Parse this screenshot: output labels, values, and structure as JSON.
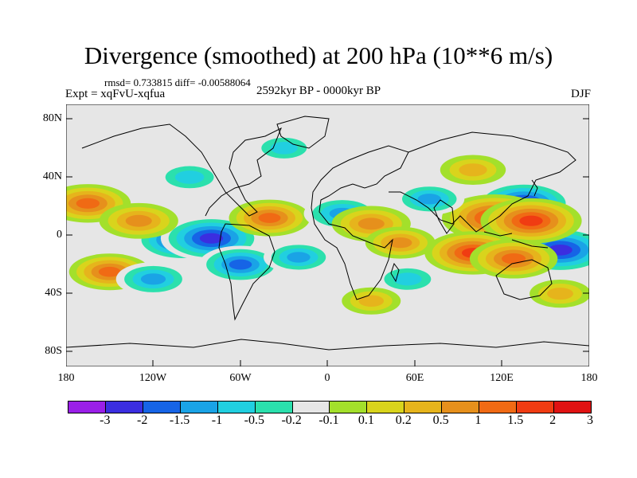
{
  "title": "Divergence (smoothed) at 200 hPa (10**6 m/s)",
  "stats": "rmsd= 0.733815 diff= -0.00588064",
  "experiment": "Expt = xqFvU-xqfua",
  "period": "2592kyr BP - 0000kyr BP",
  "season": "DJF",
  "lat_labels": [
    "80N",
    "40N",
    "0",
    "40S",
    "80S"
  ],
  "lon_labels": [
    "180",
    "120W",
    "60W",
    "0",
    "60E",
    "120E",
    "180"
  ],
  "colorbar": {
    "colors": [
      "#9a1fe8",
      "#3b2ee0",
      "#1664e6",
      "#1aa3e6",
      "#21cfe0",
      "#2be0ad",
      "#e6e6e6",
      "#a3e02b",
      "#d9d41c",
      "#e6b41c",
      "#e6901c",
      "#f06a14",
      "#f03c12",
      "#e01212"
    ],
    "labels": [
      "-3",
      "-2",
      "-1.5",
      "-1",
      "-0.5",
      "-0.2",
      "-0.1",
      "0.1",
      "0.2",
      "0.5",
      "1",
      "1.5",
      "2",
      "3"
    ]
  },
  "chart_data": {
    "type": "heatmap",
    "title": "Divergence (smoothed) at 200 hPa (10**6 m/s)",
    "levels": [
      -3,
      -2,
      -1.5,
      -1,
      -0.5,
      -0.2,
      -0.1,
      0.1,
      0.2,
      0.5,
      1,
      1.5,
      2,
      3
    ],
    "lat_range": [
      -90,
      90
    ],
    "lon_range": [
      -180,
      180
    ],
    "features": [
      {
        "lon": 160,
        "lat": -10,
        "value": -2.6
      },
      {
        "lon": 135,
        "lat": 22,
        "value": -2.3
      },
      {
        "lon": 115,
        "lat": 12,
        "value": 2.6
      },
      {
        "lon": 140,
        "lat": 10,
        "value": 2.4
      },
      {
        "lon": 100,
        "lat": -12,
        "value": 2.2
      },
      {
        "lon": 128,
        "lat": -16,
        "value": 1.8
      },
      {
        "lon": -100,
        "lat": -3,
        "value": -2.2
      },
      {
        "lon": -80,
        "lat": -2,
        "value": -2.4
      },
      {
        "lon": -60,
        "lat": -20,
        "value": -1.6
      },
      {
        "lon": -165,
        "lat": 22,
        "value": 1.7
      },
      {
        "lon": -130,
        "lat": 10,
        "value": 1.4
      },
      {
        "lon": -150,
        "lat": -25,
        "value": 1.5
      },
      {
        "lon": -120,
        "lat": -30,
        "value": -1.2
      },
      {
        "lon": -40,
        "lat": 12,
        "value": 1.5
      },
      {
        "lon": 10,
        "lat": 15,
        "value": -1.3
      },
      {
        "lon": 30,
        "lat": 8,
        "value": 1.4
      },
      {
        "lon": 70,
        "lat": 25,
        "value": -1.0
      },
      {
        "lon": 50,
        "lat": -5,
        "value": 1.0
      },
      {
        "lon": 55,
        "lat": -30,
        "value": -0.8
      },
      {
        "lon": -95,
        "lat": 40,
        "value": -0.9
      },
      {
        "lon": -30,
        "lat": 60,
        "value": -0.7
      },
      {
        "lon": 100,
        "lat": 45,
        "value": 0.8
      },
      {
        "lon": 30,
        "lat": -45,
        "value": 0.5
      },
      {
        "lon": -20,
        "lat": -15,
        "value": -1.0
      },
      {
        "lon": 160,
        "lat": -40,
        "value": 0.6
      }
    ]
  }
}
